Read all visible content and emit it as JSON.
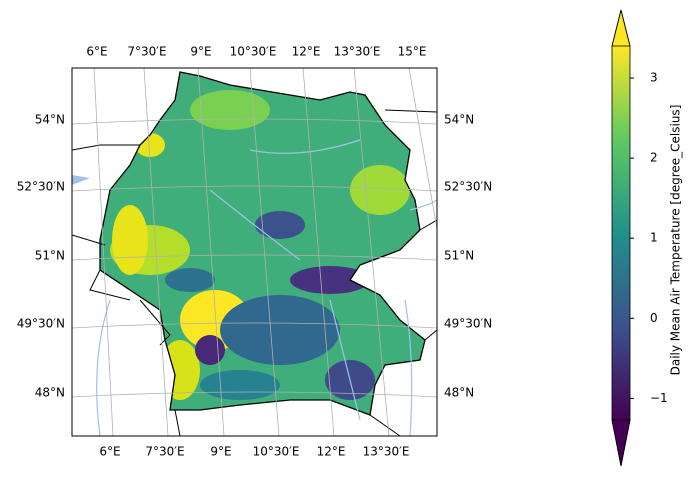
{
  "map": {
    "top_labels": [
      "6°E",
      "7°30′E",
      "9°E",
      "10°30′E",
      "12°E",
      "13°30′E",
      "15°E"
    ],
    "bottom_labels": [
      "6°E",
      "7°30′E",
      "9°E",
      "10°30′E",
      "12°E",
      "13°30′E"
    ],
    "left_labels": [
      "54°N",
      "52°30′N",
      "51°N",
      "49°30′N",
      "48°N"
    ],
    "right_labels": [
      "54°N",
      "52°30′N",
      "51°N",
      "49°30′N",
      "48°N"
    ]
  },
  "colorbar": {
    "label": "Daily Mean Air Temperature [degree_Celsius]",
    "lim": [
      -1.27,
      3.4
    ],
    "ticks": [
      {
        "value": -1,
        "label": "−1"
      },
      0,
      1,
      2,
      3
    ],
    "colormap": [
      "#440154",
      "#3b528b",
      "#21918c",
      "#5ec962",
      "#fde725"
    ]
  }
}
